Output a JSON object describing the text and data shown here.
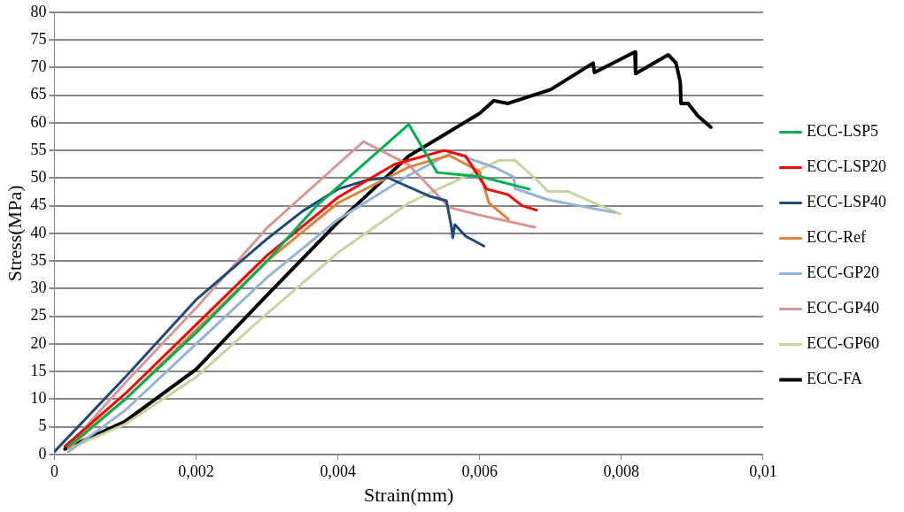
{
  "chart_data": {
    "type": "line",
    "xlabel": "Strain(mm)",
    "ylabel": "Stress(MPa)",
    "xlim": [
      0,
      0.01
    ],
    "ylim": [
      0,
      80
    ],
    "xticks": [
      0,
      {
        "value": 0.002,
        "label": "0,002"
      },
      {
        "value": 0.004,
        "label": "0,004"
      },
      {
        "value": 0.006,
        "label": "0,006"
      },
      {
        "value": 0.008,
        "label": "0,008"
      },
      {
        "value": 0.01,
        "label": "0,01"
      }
    ],
    "yticks": [
      0,
      5,
      10,
      15,
      20,
      25,
      30,
      35,
      40,
      45,
      50,
      55,
      60,
      65,
      70,
      75,
      80
    ],
    "grid": "y",
    "legend": "right",
    "marker": "none",
    "line_style": "solid",
    "series": [
      {
        "name": "ECC-LSP5",
        "color": "#00b050",
        "x": [
          0.0002,
          0.001,
          0.002,
          0.003,
          0.0037,
          0.005,
          0.0054,
          0.006,
          0.0067
        ],
        "values": [
          1.5,
          10,
          22,
          35,
          45,
          59.7,
          51,
          50.3,
          48
        ]
      },
      {
        "name": "ECC-LSP20",
        "color": "#ff0000",
        "x": [
          0.00015,
          0.001,
          0.002,
          0.003,
          0.004,
          0.0048,
          0.0055,
          0.0058,
          0.006,
          0.0061,
          0.0064,
          0.0066,
          0.0068
        ],
        "values": [
          1.5,
          11,
          23.5,
          36,
          46.5,
          52.5,
          55,
          54,
          50,
          48,
          47,
          45,
          44.2
        ]
      },
      {
        "name": "ECC-LSP40",
        "color": "#1f497d",
        "x": [
          0,
          0.001,
          0.002,
          0.003,
          0.0035,
          0.004,
          0.0044,
          0.0047,
          0.0053,
          0.00553,
          0.0056,
          0.00562,
          0.00565,
          0.0058,
          0.00606
        ],
        "values": [
          0.5,
          14,
          28,
          39,
          44,
          48,
          49.6,
          50.1,
          46.7,
          45.9,
          41.3,
          39.2,
          41.6,
          39.5,
          37.7
        ]
      },
      {
        "name": "ECC-Ref",
        "color": "#e0833a",
        "x": [
          0.0002,
          0.001,
          0.002,
          0.003,
          0.004,
          0.005,
          0.00557,
          0.006,
          0.00613,
          0.0064
        ],
        "values": [
          1.2,
          10,
          22.5,
          35,
          45.5,
          52,
          54.1,
          51.2,
          45.5,
          42.6
        ]
      },
      {
        "name": "ECC-GP20",
        "color": "#95b3d7",
        "x": [
          0.0002,
          0.001,
          0.002,
          0.003,
          0.004,
          0.005,
          0.00561,
          0.00622,
          0.00648,
          0.0065,
          0.00696,
          0.0078,
          0.0079
        ],
        "values": [
          0.5,
          8,
          20,
          32,
          42.5,
          50.5,
          54.6,
          51.9,
          50.2,
          48.1,
          46.1,
          44,
          43.8
        ]
      },
      {
        "name": "ECC-GP40",
        "color": "#d99694",
        "x": [
          0.0002,
          0.001,
          0.002,
          0.003,
          0.004,
          0.00436,
          0.005,
          0.00557,
          0.006,
          0.00678
        ],
        "values": [
          1.5,
          13,
          26.5,
          41,
          52.5,
          56.6,
          52.4,
          44.7,
          43.3,
          41.1
        ]
      },
      {
        "name": "ECC-GP60",
        "color": "#c3d69b",
        "x": [
          0.0002,
          0.001,
          0.002,
          0.003,
          0.004,
          0.005,
          0.006,
          0.00627,
          0.0065,
          0.00682,
          0.00696,
          0.00724,
          0.00798
        ],
        "values": [
          1,
          5.5,
          14,
          25.5,
          36.5,
          45.5,
          51.5,
          53.2,
          53.2,
          49.5,
          47.6,
          47.6,
          43.5
        ]
      },
      {
        "name": "ECC-FA",
        "color": "#000000",
        "x": [
          0.00015,
          0.001,
          0.002,
          0.003,
          0.004,
          0.005,
          0.006,
          0.0062,
          0.0064,
          0.007,
          0.0076,
          0.00762,
          0.00819,
          0.0082,
          0.00866,
          0.00877,
          0.00883,
          0.00884,
          0.00894,
          0.00908,
          0.00926
        ],
        "values": [
          1,
          6,
          15.4,
          28.8,
          42,
          54,
          61.7,
          64,
          63.5,
          66,
          70.8,
          69.1,
          72.8,
          68.9,
          72.3,
          70.8,
          67.4,
          63.5,
          63.5,
          61.2,
          59.2
        ]
      }
    ]
  }
}
